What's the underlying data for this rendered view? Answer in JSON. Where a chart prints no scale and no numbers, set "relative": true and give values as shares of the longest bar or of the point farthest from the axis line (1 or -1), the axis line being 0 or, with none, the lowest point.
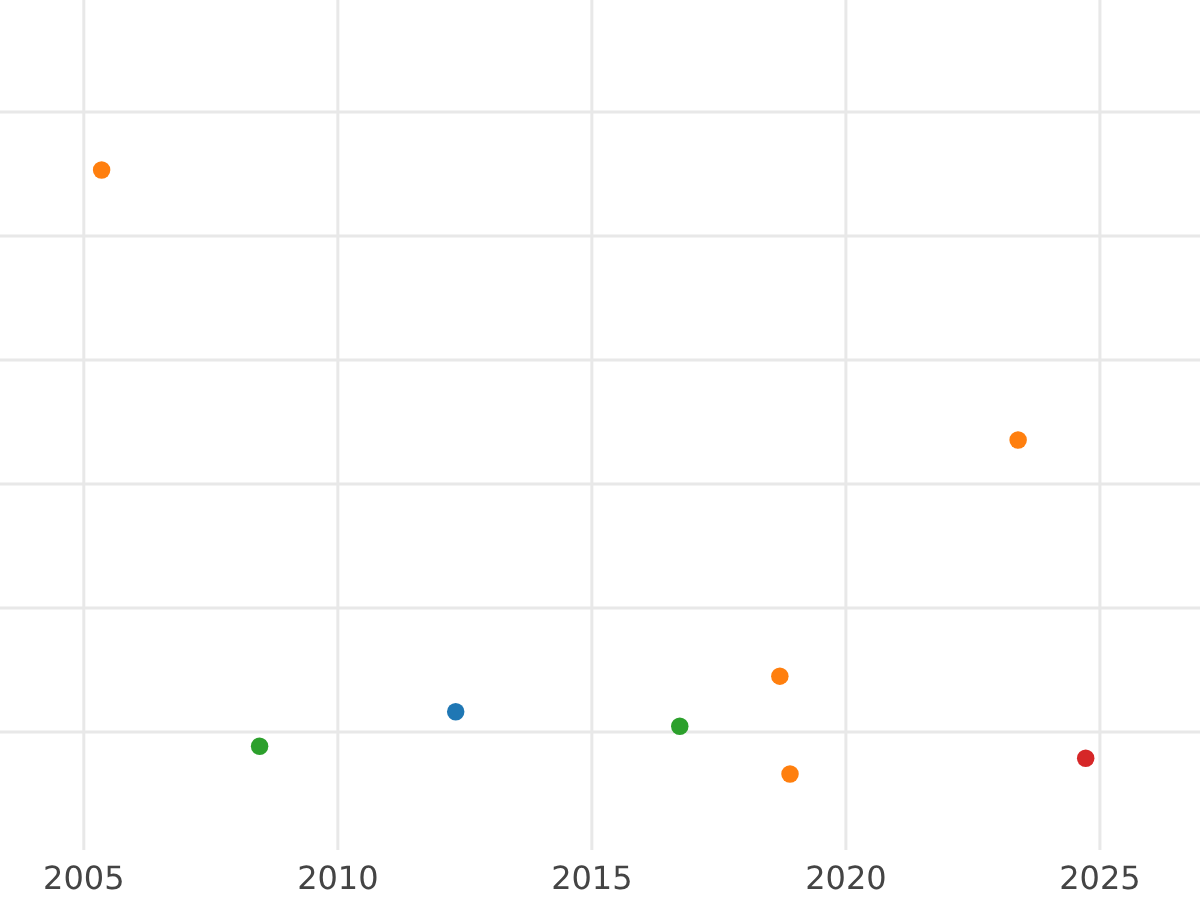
{
  "chart_data": {
    "type": "scatter",
    "relative": true,
    "grid": true,
    "marker": "circle",
    "xlim": [
      2003.35,
      2026.97
    ],
    "xticks": [
      2005,
      2010,
      2015,
      2020,
      2025
    ],
    "series": [
      {
        "color": "#1f77b4",
        "x": [
          2012.32
        ],
        "values": [
          0.103
        ]
      },
      {
        "color": "#ff7f0e",
        "x": [
          2005.35,
          2023.39,
          2018.7,
          2018.9
        ],
        "values": [
          1,
          0.553,
          0.162,
          0
        ]
      },
      {
        "color": "#2ca02c",
        "x": [
          2008.46,
          2016.73
        ],
        "values": [
          0.046,
          0.079
        ]
      },
      {
        "color": "#d62728",
        "x": [
          2024.72
        ],
        "values": [
          0.026
        ]
      }
    ]
  }
}
